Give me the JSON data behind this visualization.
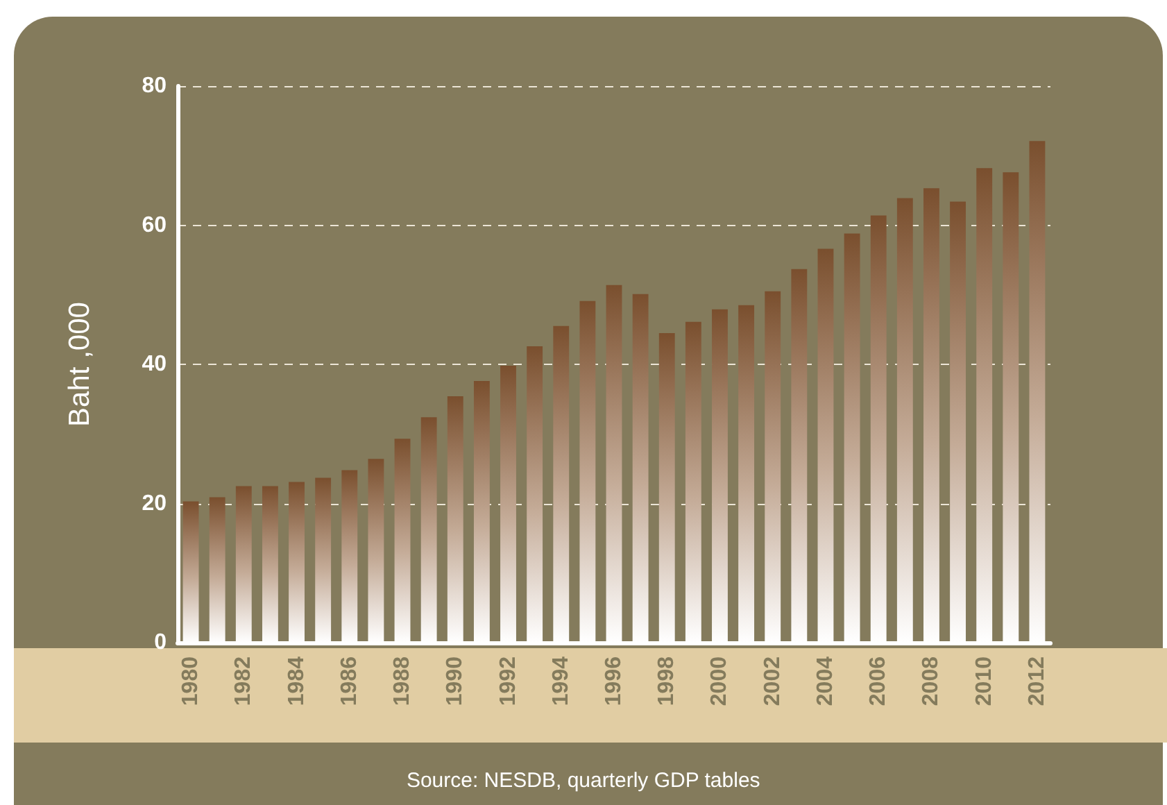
{
  "chart_data": {
    "type": "bar",
    "ylabel": "Baht ,000",
    "categories": [
      "1980",
      null,
      "1982",
      null,
      "1984",
      null,
      "1986",
      null,
      "1988",
      null,
      "1990",
      null,
      "1992",
      null,
      "1994",
      null,
      "1996",
      null,
      "1998",
      null,
      "2000",
      null,
      "2002",
      null,
      "2004",
      null,
      "2006",
      null,
      "2008",
      null,
      "2010",
      null,
      "2012"
    ],
    "values": [
      20.3,
      20.9,
      22.5,
      22.5,
      23.1,
      23.7,
      24.8,
      26.4,
      29.3,
      32.4,
      35.4,
      37.6,
      39.8,
      42.6,
      45.5,
      49.1,
      51.4,
      50.1,
      44.5,
      46.1,
      47.9,
      48.5,
      50.5,
      53.7,
      56.6,
      58.8,
      61.4,
      63.9,
      65.3,
      63.4,
      68.2,
      67.6,
      72.1
    ],
    "color": "#7a4f2e",
    "ylim": [
      0,
      80
    ],
    "yticks": [
      0,
      20,
      40,
      60,
      80
    ],
    "grid": "y",
    "annotations": [
      "Source: NESDB, quarterly GDP tables"
    ]
  }
}
